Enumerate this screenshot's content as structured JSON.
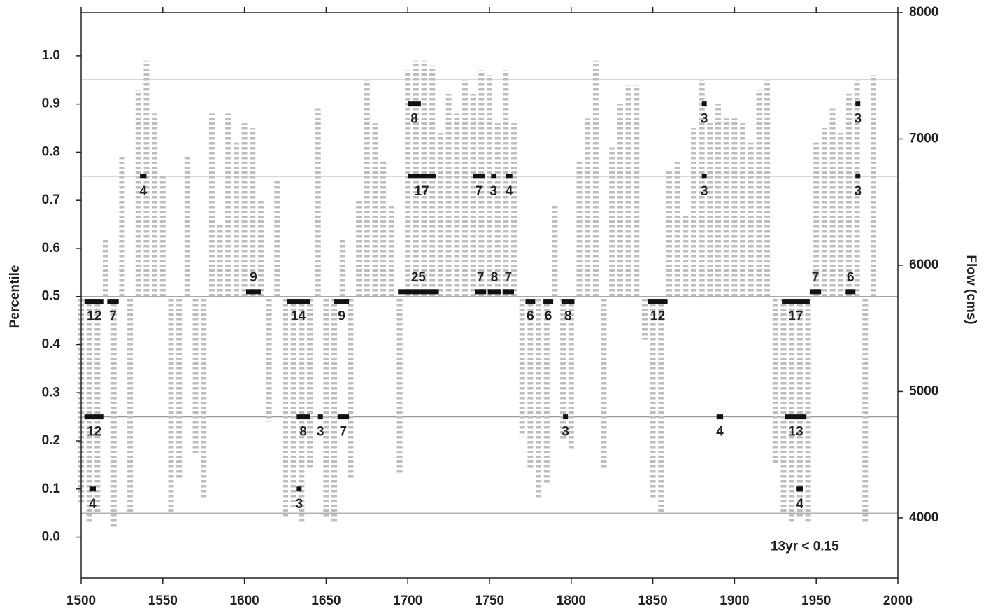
{
  "chart_data": {
    "type": "bar",
    "ylabel": "Percentile",
    "y2label": "Flow (cms)",
    "xlim": [
      1500,
      2000
    ],
    "xticks": [
      1500,
      1550,
      1600,
      1650,
      1700,
      1750,
      1800,
      1850,
      1900,
      1950,
      2000
    ],
    "ylim": [
      -0.085,
      1.09
    ],
    "yticks": [
      {
        "value": 0,
        "label": "0.0"
      },
      0.1,
      0.2,
      0.3,
      0.4,
      0.5,
      0.6,
      0.7,
      0.8,
      0.9,
      {
        "value": 1,
        "label": "1.0"
      }
    ],
    "y2lim": [
      3523,
      8000
    ],
    "y2ticks": [
      4000,
      5000,
      6000,
      7000,
      8000
    ],
    "baseline": 0.5,
    "reference_lines": [
      0.95,
      0.75,
      0.5,
      0.25,
      0.05
    ],
    "bar_color": "#bdbdbd",
    "run_color": "#111111",
    "x": [
      1500,
      1505,
      1510,
      1515,
      1520,
      1525,
      1530,
      1535,
      1540,
      1545,
      1550,
      1555,
      1560,
      1565,
      1570,
      1575,
      1580,
      1585,
      1590,
      1595,
      1600,
      1605,
      1610,
      1615,
      1620,
      1625,
      1630,
      1635,
      1640,
      1645,
      1650,
      1655,
      1660,
      1665,
      1670,
      1675,
      1680,
      1685,
      1690,
      1695,
      1700,
      1705,
      1710,
      1715,
      1720,
      1725,
      1730,
      1735,
      1740,
      1745,
      1750,
      1755,
      1760,
      1765,
      1770,
      1775,
      1780,
      1785,
      1790,
      1795,
      1800,
      1805,
      1810,
      1815,
      1820,
      1825,
      1830,
      1835,
      1840,
      1845,
      1850,
      1855,
      1860,
      1865,
      1870,
      1875,
      1880,
      1885,
      1890,
      1895,
      1900,
      1905,
      1910,
      1915,
      1920,
      1925,
      1930,
      1935,
      1940,
      1945,
      1950,
      1955,
      1960,
      1965,
      1970,
      1975,
      1980,
      1985
    ],
    "values": [
      0.07,
      0.03,
      0.05,
      0.62,
      0.02,
      0.79,
      0.05,
      0.93,
      0.99,
      0.88,
      0.75,
      0.05,
      0.12,
      0.79,
      0.17,
      0.08,
      0.88,
      0.65,
      0.88,
      0.82,
      0.86,
      0.85,
      0.7,
      0.24,
      0.74,
      0.04,
      0.06,
      0.03,
      0.14,
      0.89,
      0.04,
      0.03,
      0.62,
      0.12,
      0.7,
      0.95,
      0.86,
      0.78,
      0.69,
      0.13,
      0.97,
      0.99,
      0.99,
      0.98,
      0.84,
      0.92,
      0.88,
      0.95,
      0.92,
      0.97,
      0.96,
      0.86,
      0.97,
      0.86,
      0.21,
      0.14,
      0.08,
      0.11,
      0.69,
      0.2,
      0.18,
      0.78,
      0.87,
      0.99,
      0.14,
      0.81,
      0.9,
      0.94,
      0.94,
      0.41,
      0.08,
      0.05,
      0.76,
      0.78,
      0.67,
      0.85,
      0.95,
      0.86,
      0.9,
      0.87,
      0.87,
      0.86,
      0.82,
      0.93,
      0.95,
      0.15,
      0.05,
      0.03,
      0.04,
      0.03,
      0.82,
      0.85,
      0.89,
      0.84,
      0.92,
      0.95,
      0.03,
      0.96
    ],
    "runs": [
      {
        "start": 1700,
        "end": 1708,
        "level": 0.9,
        "count": 8
      },
      {
        "start": 1880,
        "end": 1883,
        "level": 0.9,
        "count": 3
      },
      {
        "start": 1974,
        "end": 1977,
        "level": 0.9,
        "count": 3
      },
      {
        "start": 1536,
        "end": 1540,
        "level": 0.75,
        "count": 4
      },
      {
        "start": 1700,
        "end": 1717,
        "level": 0.75,
        "count": 17
      },
      {
        "start": 1740,
        "end": 1747,
        "level": 0.75,
        "count": 7
      },
      {
        "start": 1751,
        "end": 1754,
        "level": 0.75,
        "count": 3
      },
      {
        "start": 1760,
        "end": 1764,
        "level": 0.75,
        "count": 4
      },
      {
        "start": 1880,
        "end": 1883,
        "level": 0.75,
        "count": 3
      },
      {
        "start": 1974,
        "end": 1977,
        "level": 0.75,
        "count": 3
      },
      {
        "start": 1601,
        "end": 1610,
        "level": 0.51,
        "count": 9
      },
      {
        "start": 1694,
        "end": 1719,
        "level": 0.51,
        "count": 25
      },
      {
        "start": 1741,
        "end": 1748,
        "level": 0.51,
        "count": 7
      },
      {
        "start": 1749,
        "end": 1757,
        "level": 0.51,
        "count": 8
      },
      {
        "start": 1758,
        "end": 1765,
        "level": 0.51,
        "count": 7
      },
      {
        "start": 1946,
        "end": 1953,
        "level": 0.51,
        "count": 7
      },
      {
        "start": 1968,
        "end": 1974,
        "level": 0.51,
        "count": 6
      },
      {
        "start": 1502,
        "end": 1514,
        "level": 0.49,
        "count": 12
      },
      {
        "start": 1516,
        "end": 1523,
        "level": 0.49,
        "count": 7
      },
      {
        "start": 1626,
        "end": 1640,
        "level": 0.49,
        "count": 14
      },
      {
        "start": 1655,
        "end": 1664,
        "level": 0.49,
        "count": 9
      },
      {
        "start": 1772,
        "end": 1778,
        "level": 0.49,
        "count": 6
      },
      {
        "start": 1783,
        "end": 1789,
        "level": 0.49,
        "count": 6
      },
      {
        "start": 1794,
        "end": 1802,
        "level": 0.49,
        "count": 8
      },
      {
        "start": 1847,
        "end": 1859,
        "level": 0.49,
        "count": 12
      },
      {
        "start": 1929,
        "end": 1946,
        "level": 0.49,
        "count": 17
      },
      {
        "start": 1502,
        "end": 1514,
        "level": 0.25,
        "count": 12
      },
      {
        "start": 1632,
        "end": 1640,
        "level": 0.25,
        "count": 8
      },
      {
        "start": 1645,
        "end": 1648,
        "level": 0.25,
        "count": 3
      },
      {
        "start": 1657,
        "end": 1664,
        "level": 0.25,
        "count": 7
      },
      {
        "start": 1795,
        "end": 1798,
        "level": 0.25,
        "count": 3
      },
      {
        "start": 1889,
        "end": 1893,
        "level": 0.25,
        "count": 4
      },
      {
        "start": 1931,
        "end": 1944,
        "level": 0.25,
        "count": 13
      },
      {
        "start": 1505,
        "end": 1509,
        "level": 0.1,
        "count": 4
      },
      {
        "start": 1632,
        "end": 1635,
        "level": 0.1,
        "count": 3
      },
      {
        "start": 1938,
        "end": 1942,
        "level": 0.1,
        "count": 4
      }
    ],
    "annotation": {
      "text": "13yr < 0.15",
      "x": 1943,
      "y": -0.02
    }
  }
}
